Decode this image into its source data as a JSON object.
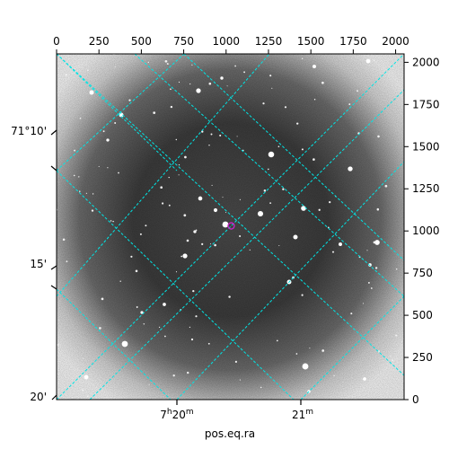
{
  "figure": {
    "xlabel": "pos.eq.ra",
    "pixel_axis": {
      "x_ticks": [
        "0",
        "250",
        "500",
        "750",
        "1000",
        "1250",
        "1500",
        "1750",
        "2000"
      ],
      "y_ticks": [
        "0",
        "250",
        "500",
        "750",
        "1000",
        "1250",
        "1500",
        "1750",
        "2000"
      ],
      "xlim": [
        0,
        2050
      ],
      "ylim": [
        0,
        2050
      ]
    },
    "ra_ticks": [
      {
        "h": "7",
        "m": "20"
      },
      {
        "m": "21"
      }
    ],
    "dec_ticks": [
      "71°10'",
      "15'",
      "20'"
    ],
    "grid_color": "#00e5e5",
    "marker_color": "#cc22cc",
    "background": "grayscale astronomical image with dark central vignette and bright white stars",
    "marker": {
      "x": 1030,
      "y": 1030
    }
  }
}
